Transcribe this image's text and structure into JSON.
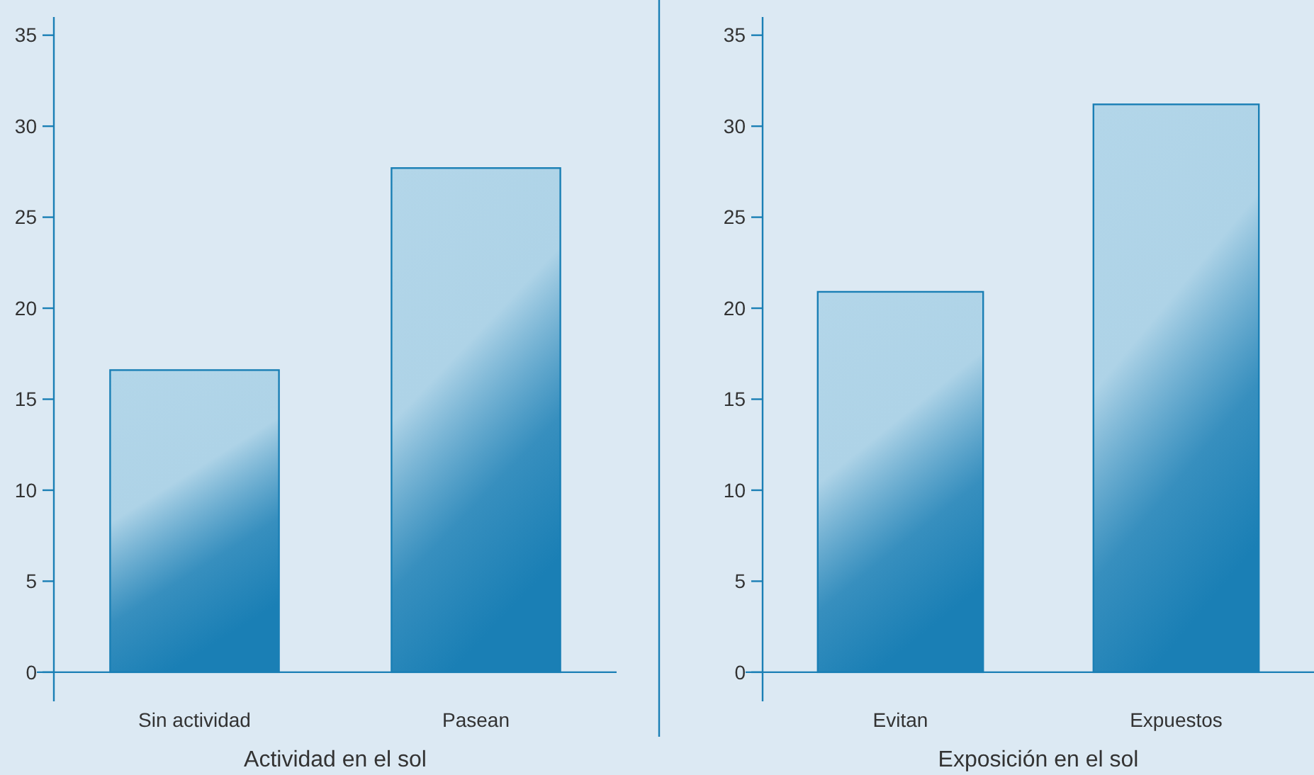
{
  "chart_data": [
    {
      "type": "bar",
      "xlabel": "Actividad en el sol",
      "categories": [
        "Sin actividad",
        "Pasean"
      ],
      "values": [
        16.6,
        27.7
      ],
      "color": "#1a7fb5",
      "ylim": [
        -1.6,
        36
      ],
      "yticks": [
        0,
        5,
        10,
        15,
        20,
        25,
        30,
        35
      ],
      "grid": false
    },
    {
      "type": "bar",
      "xlabel": "Exposición en el sol",
      "categories": [
        "Evitan",
        "Expuestos"
      ],
      "values": [
        20.9,
        31.2
      ],
      "color": "#1a7fb5",
      "ylim": [
        -1.6,
        36
      ],
      "yticks": [
        0,
        5,
        10,
        15,
        20,
        25,
        30,
        35
      ],
      "grid": false
    }
  ]
}
